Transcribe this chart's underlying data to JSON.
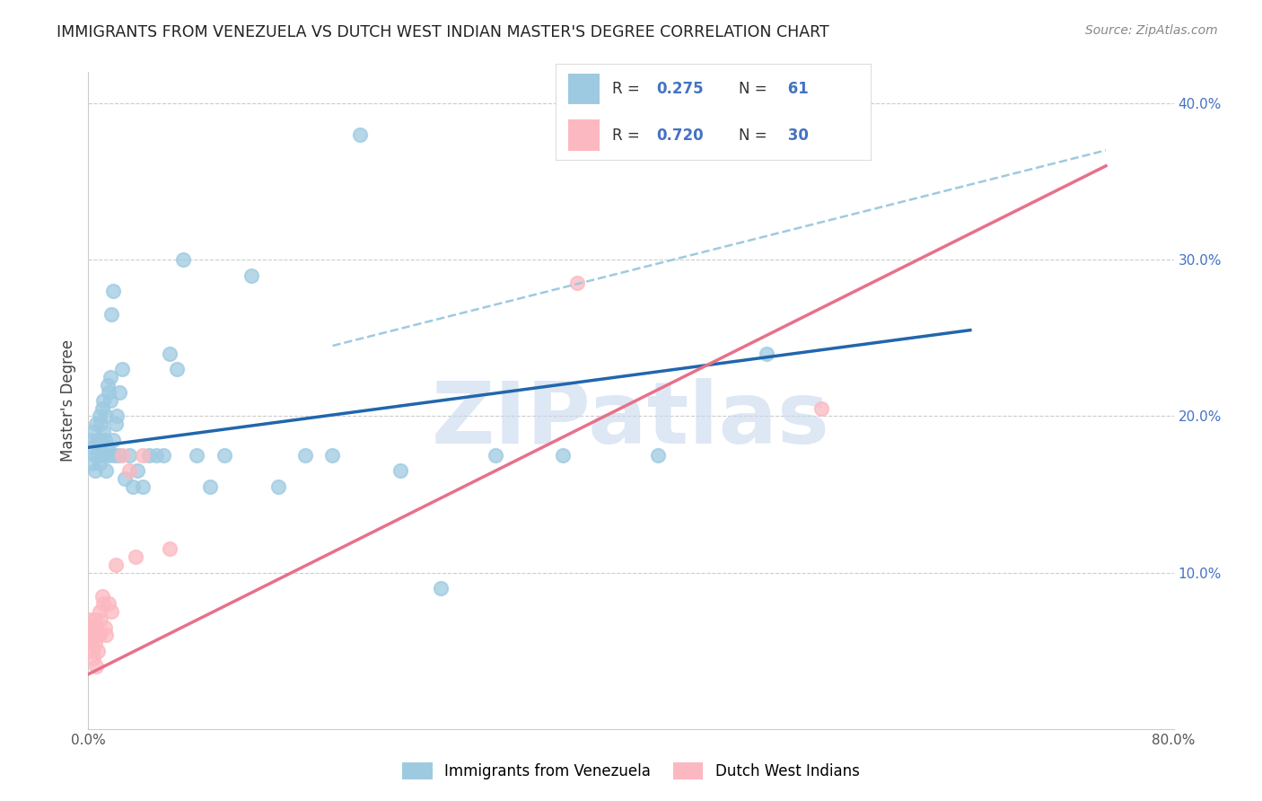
{
  "title": "IMMIGRANTS FROM VENEZUELA VS DUTCH WEST INDIAN MASTER'S DEGREE CORRELATION CHART",
  "source": "Source: ZipAtlas.com",
  "ylabel": "Master's Degree",
  "x_min": 0.0,
  "x_max": 0.8,
  "y_min": 0.0,
  "y_max": 0.42,
  "x_ticks": [
    0.0,
    0.1,
    0.2,
    0.3,
    0.4,
    0.5,
    0.6,
    0.7,
    0.8
  ],
  "x_tick_labels": [
    "0.0%",
    "",
    "",
    "",
    "",
    "",
    "",
    "",
    "80.0%"
  ],
  "y_ticks_right": [
    0.1,
    0.2,
    0.3,
    0.4
  ],
  "y_tick_labels_right": [
    "10.0%",
    "20.0%",
    "30.0%",
    "40.0%"
  ],
  "blue_color": "#9ecae1",
  "pink_color": "#fcb8c0",
  "blue_line_color": "#2166ac",
  "pink_line_color": "#e8708a",
  "dashed_line_color": "#9ecae1",
  "watermark": "ZIPatlas",
  "legend1_label": "Immigrants from Venezuela",
  "legend2_label": "Dutch West Indians",
  "blue_scatter_x": [
    0.002,
    0.003,
    0.003,
    0.004,
    0.005,
    0.005,
    0.006,
    0.007,
    0.007,
    0.008,
    0.008,
    0.009,
    0.009,
    0.01,
    0.01,
    0.011,
    0.011,
    0.012,
    0.012,
    0.013,
    0.013,
    0.014,
    0.014,
    0.015,
    0.015,
    0.016,
    0.016,
    0.017,
    0.018,
    0.018,
    0.019,
    0.02,
    0.021,
    0.022,
    0.023,
    0.025,
    0.027,
    0.03,
    0.033,
    0.036,
    0.04,
    0.045,
    0.05,
    0.055,
    0.06,
    0.065,
    0.07,
    0.08,
    0.09,
    0.1,
    0.12,
    0.14,
    0.16,
    0.18,
    0.2,
    0.23,
    0.26,
    0.3,
    0.35,
    0.42,
    0.5
  ],
  "blue_scatter_y": [
    0.185,
    0.17,
    0.18,
    0.19,
    0.175,
    0.165,
    0.195,
    0.185,
    0.175,
    0.2,
    0.17,
    0.185,
    0.195,
    0.175,
    0.205,
    0.19,
    0.21,
    0.185,
    0.175,
    0.2,
    0.165,
    0.22,
    0.18,
    0.215,
    0.175,
    0.225,
    0.21,
    0.265,
    0.28,
    0.185,
    0.175,
    0.195,
    0.2,
    0.175,
    0.215,
    0.23,
    0.16,
    0.175,
    0.155,
    0.165,
    0.155,
    0.175,
    0.175,
    0.175,
    0.24,
    0.23,
    0.3,
    0.175,
    0.155,
    0.175,
    0.29,
    0.155,
    0.175,
    0.175,
    0.38,
    0.165,
    0.09,
    0.175,
    0.175,
    0.175,
    0.24
  ],
  "pink_scatter_x": [
    0.001,
    0.002,
    0.002,
    0.003,
    0.003,
    0.004,
    0.004,
    0.005,
    0.005,
    0.006,
    0.006,
    0.007,
    0.007,
    0.008,
    0.008,
    0.009,
    0.01,
    0.011,
    0.012,
    0.013,
    0.015,
    0.017,
    0.02,
    0.025,
    0.03,
    0.035,
    0.04,
    0.06,
    0.36,
    0.54
  ],
  "pink_scatter_y": [
    0.06,
    0.07,
    0.055,
    0.065,
    0.05,
    0.06,
    0.045,
    0.07,
    0.055,
    0.065,
    0.04,
    0.06,
    0.05,
    0.075,
    0.06,
    0.07,
    0.085,
    0.08,
    0.065,
    0.06,
    0.08,
    0.075,
    0.105,
    0.175,
    0.165,
    0.11,
    0.175,
    0.115,
    0.285,
    0.205
  ],
  "blue_trend_x": [
    0.0,
    0.65
  ],
  "blue_trend_y": [
    0.18,
    0.255
  ],
  "pink_trend_x": [
    0.0,
    0.75
  ],
  "pink_trend_y": [
    0.035,
    0.36
  ],
  "dashed_trend_x": [
    0.18,
    0.75
  ],
  "dashed_trend_y": [
    0.245,
    0.37
  ]
}
